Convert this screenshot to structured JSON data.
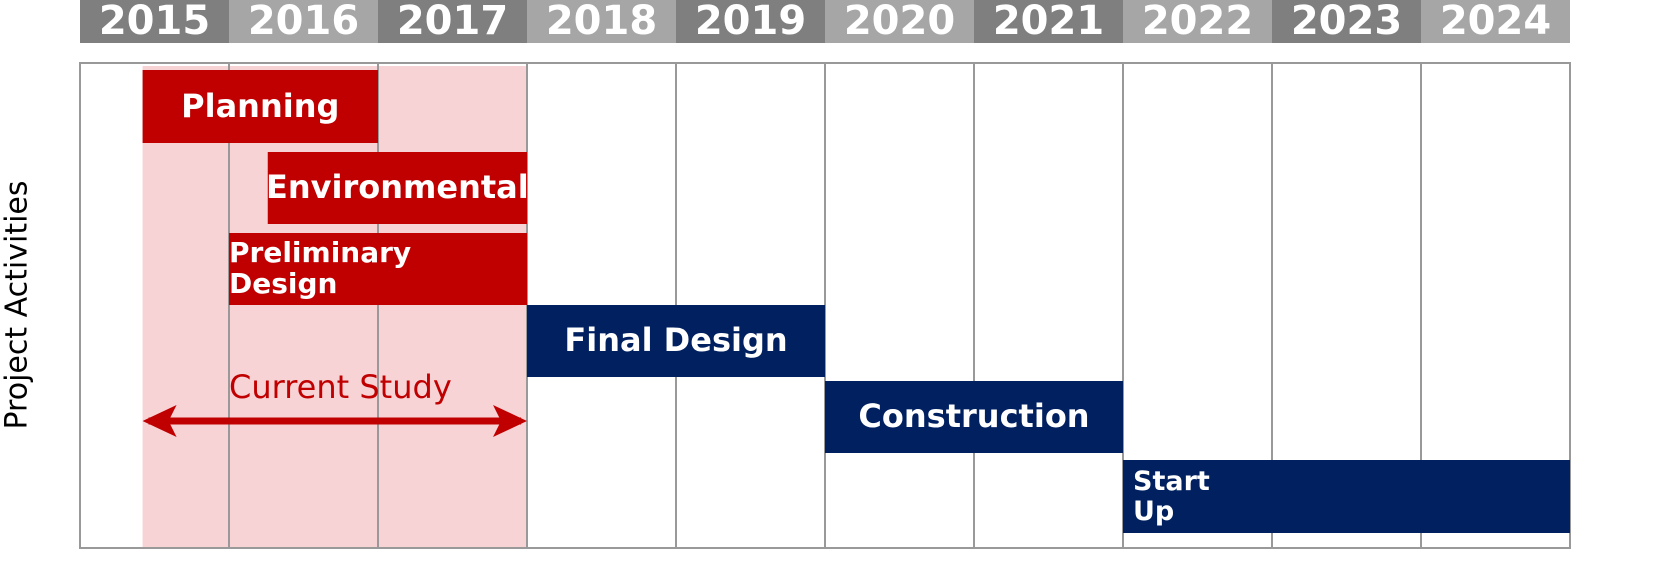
{
  "chart_data": {
    "type": "gantt",
    "y_label": "Project Activities",
    "xlim": [
      2015,
      2025
    ],
    "xticks": [
      2015,
      2016,
      2017,
      2018,
      2019,
      2020,
      2021,
      2022,
      2023,
      2024
    ],
    "grid": true,
    "tasks": [
      {
        "name": "Planning",
        "start": 2015.42,
        "end": 2017.0,
        "color": "#c00000"
      },
      {
        "name": "Environmental",
        "start": 2016.26,
        "end": 2018.0,
        "color": "#c00000"
      },
      {
        "name": "Preliminary Design",
        "start": 2016.0,
        "end": 2018.0,
        "color": "#c00000"
      },
      {
        "name": "Final Design",
        "start": 2018.0,
        "end": 2020.0,
        "color": "#002060"
      },
      {
        "name": "Construction",
        "start": 2020.0,
        "end": 2022.0,
        "color": "#002060"
      },
      {
        "name": "Start Up",
        "start": 2022.0,
        "end": 2025.0,
        "color": "#002060"
      }
    ],
    "span": {
      "label": "Current Study",
      "start": 2015.42,
      "end": 2018.0,
      "color": "#c00000",
      "shade": "#f8d3d6"
    }
  }
}
